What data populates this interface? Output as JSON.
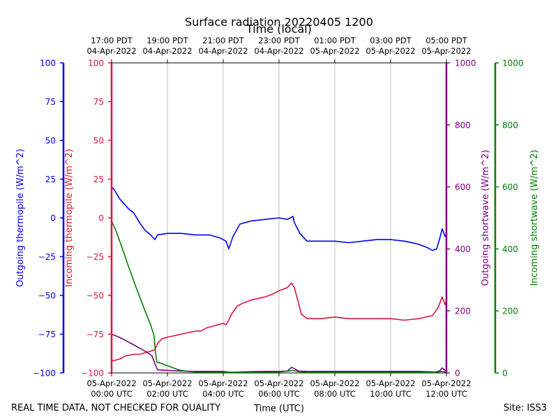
{
  "chart_data": {
    "type": "line",
    "title": "Surface radiation 20220405 1200",
    "x_local_label": "Time (local)",
    "x_utc_label": "Time (UTC)",
    "x_range_hours_utc": [
      0,
      12
    ],
    "x_ticks": [
      {
        "hour": 0,
        "utc": [
          "05-Apr-2022",
          "00:00 UTC"
        ],
        "local": [
          "17:00 PDT",
          "04-Apr-2022"
        ]
      },
      {
        "hour": 2,
        "utc": [
          "05-Apr-2022",
          "02:00 UTC"
        ],
        "local": [
          "19:00 PDT",
          "04-Apr-2022"
        ]
      },
      {
        "hour": 4,
        "utc": [
          "05-Apr-2022",
          "04:00 UTC"
        ],
        "local": [
          "21:00 PDT",
          "04-Apr-2022"
        ]
      },
      {
        "hour": 6,
        "utc": [
          "05-Apr-2022",
          "06:00 UTC"
        ],
        "local": [
          "23:00 PDT",
          "04-Apr-2022"
        ]
      },
      {
        "hour": 8,
        "utc": [
          "05-Apr-2022",
          "08:00 UTC"
        ],
        "local": [
          "01:00 PDT",
          "05-Apr-2022"
        ]
      },
      {
        "hour": 10,
        "utc": [
          "05-Apr-2022",
          "10:00 UTC"
        ],
        "local": [
          "03:00 PDT",
          "05-Apr-2022"
        ]
      },
      {
        "hour": 12,
        "utc": [
          "05-Apr-2022",
          "12:00 UTC"
        ],
        "local": [
          "05:00 PDT",
          "05-Apr-2022"
        ]
      }
    ],
    "grid": "vertical",
    "axes": [
      {
        "id": "out_thermo",
        "label": "Outgoing thermopile (W/m^2)",
        "color": "#0000ee",
        "range": [
          -100,
          100
        ],
        "ticks": [
          -100,
          -75,
          -50,
          -25,
          0,
          25,
          50,
          75,
          100
        ]
      },
      {
        "id": "in_thermo",
        "label": "Incoming thermopile (W/m^2)",
        "color": "#dc143c",
        "range": [
          -100,
          100
        ],
        "ticks": [
          -100,
          -75,
          -50,
          -25,
          0,
          25,
          50,
          75,
          100
        ]
      },
      {
        "id": "out_sw",
        "label": "Outgoing shortwave (W/m^2)",
        "color": "#800080",
        "range": [
          0,
          1000
        ],
        "ticks": [
          0,
          200,
          400,
          600,
          800,
          1000
        ]
      },
      {
        "id": "in_sw",
        "label": "Incoming shortwave (W/m^2)",
        "color": "#008000",
        "range": [
          0,
          1000
        ],
        "ticks": [
          0,
          200,
          400,
          600,
          800,
          1000
        ]
      }
    ],
    "series": [
      {
        "axis": "out_thermo",
        "color": "#0000ee",
        "points": [
          [
            0,
            20
          ],
          [
            0.1,
            18
          ],
          [
            0.2,
            15
          ],
          [
            0.3,
            12
          ],
          [
            0.4,
            10
          ],
          [
            0.5,
            8
          ],
          [
            0.6,
            6
          ],
          [
            0.8,
            3
          ],
          [
            1.0,
            -3
          ],
          [
            1.2,
            -8
          ],
          [
            1.4,
            -11
          ],
          [
            1.55,
            -14
          ],
          [
            1.65,
            -11
          ],
          [
            2.0,
            -10
          ],
          [
            2.5,
            -10
          ],
          [
            3.0,
            -11
          ],
          [
            3.5,
            -11
          ],
          [
            3.9,
            -13
          ],
          [
            4.1,
            -15
          ],
          [
            4.2,
            -20
          ],
          [
            4.35,
            -12
          ],
          [
            4.6,
            -4
          ],
          [
            5.0,
            -2
          ],
          [
            5.5,
            -1
          ],
          [
            6.0,
            0
          ],
          [
            6.3,
            -1
          ],
          [
            6.5,
            1
          ],
          [
            6.55,
            -3
          ],
          [
            6.75,
            -10
          ],
          [
            7.0,
            -15
          ],
          [
            7.5,
            -15
          ],
          [
            8.0,
            -15
          ],
          [
            8.5,
            -16
          ],
          [
            9.0,
            -15
          ],
          [
            9.5,
            -14
          ],
          [
            10.0,
            -14
          ],
          [
            10.5,
            -15
          ],
          [
            11.0,
            -17
          ],
          [
            11.3,
            -19
          ],
          [
            11.5,
            -21
          ],
          [
            11.65,
            -20
          ],
          [
            11.75,
            -14
          ],
          [
            11.85,
            -7
          ],
          [
            11.95,
            -12
          ],
          [
            12.0,
            -10
          ]
        ]
      },
      {
        "axis": "in_thermo",
        "color": "#dc143c",
        "points": [
          [
            0,
            -92
          ],
          [
            0.1,
            -92
          ],
          [
            0.3,
            -91
          ],
          [
            0.5,
            -89
          ],
          [
            0.8,
            -88
          ],
          [
            1.0,
            -88
          ],
          [
            1.2,
            -87
          ],
          [
            1.4,
            -86
          ],
          [
            1.55,
            -85
          ],
          [
            1.65,
            -81
          ],
          [
            1.8,
            -78
          ],
          [
            2.0,
            -77
          ],
          [
            2.5,
            -75
          ],
          [
            3.0,
            -73
          ],
          [
            3.2,
            -73
          ],
          [
            3.4,
            -71
          ],
          [
            3.6,
            -70
          ],
          [
            3.8,
            -69
          ],
          [
            4.0,
            -68
          ],
          [
            4.1,
            -69
          ],
          [
            4.2,
            -66
          ],
          [
            4.3,
            -62
          ],
          [
            4.5,
            -57
          ],
          [
            4.7,
            -55
          ],
          [
            5.0,
            -53
          ],
          [
            5.5,
            -51
          ],
          [
            5.8,
            -49
          ],
          [
            6.0,
            -47
          ],
          [
            6.3,
            -45
          ],
          [
            6.45,
            -42
          ],
          [
            6.55,
            -45
          ],
          [
            6.7,
            -55
          ],
          [
            6.8,
            -62
          ],
          [
            7.0,
            -65
          ],
          [
            7.5,
            -65
          ],
          [
            8.0,
            -64
          ],
          [
            8.5,
            -65
          ],
          [
            9.0,
            -65
          ],
          [
            9.5,
            -65
          ],
          [
            10.0,
            -65
          ],
          [
            10.5,
            -66
          ],
          [
            11.0,
            -65
          ],
          [
            11.5,
            -63
          ],
          [
            11.7,
            -58
          ],
          [
            11.85,
            -51
          ],
          [
            11.95,
            -56
          ],
          [
            12.0,
            -53
          ]
        ]
      },
      {
        "axis": "out_sw",
        "color": "#800080",
        "points": [
          [
            0,
            125
          ],
          [
            0.2,
            118
          ],
          [
            0.5,
            105
          ],
          [
            0.8,
            90
          ],
          [
            1.1,
            75
          ],
          [
            1.3,
            65
          ],
          [
            1.45,
            55
          ],
          [
            1.55,
            30
          ],
          [
            1.65,
            10
          ],
          [
            2.0,
            8
          ],
          [
            2.5,
            6
          ],
          [
            3.0,
            5
          ],
          [
            3.5,
            5
          ],
          [
            4.0,
            5
          ],
          [
            4.2,
            2
          ],
          [
            4.35,
            2
          ],
          [
            4.6,
            3
          ],
          [
            5.0,
            4
          ],
          [
            5.5,
            5
          ],
          [
            6.0,
            5
          ],
          [
            6.3,
            6
          ],
          [
            6.45,
            18
          ],
          [
            6.55,
            14
          ],
          [
            6.7,
            6
          ],
          [
            7.0,
            5
          ],
          [
            8.0,
            5
          ],
          [
            9.0,
            5
          ],
          [
            10.0,
            5
          ],
          [
            11.0,
            5
          ],
          [
            11.6,
            3
          ],
          [
            11.75,
            6
          ],
          [
            11.85,
            16
          ],
          [
            11.95,
            8
          ],
          [
            12.0,
            10
          ]
        ]
      },
      {
        "axis": "in_sw",
        "color": "#008000",
        "points": [
          [
            0,
            490
          ],
          [
            0.15,
            460
          ],
          [
            0.35,
            410
          ],
          [
            0.6,
            345
          ],
          [
            0.9,
            270
          ],
          [
            1.2,
            200
          ],
          [
            1.4,
            155
          ],
          [
            1.52,
            120
          ],
          [
            1.57,
            70
          ],
          [
            1.62,
            35
          ],
          [
            1.8,
            30
          ],
          [
            2.1,
            20
          ],
          [
            2.4,
            10
          ],
          [
            2.7,
            5
          ],
          [
            3.0,
            3
          ],
          [
            4.0,
            2
          ],
          [
            5.0,
            2
          ],
          [
            6.0,
            3
          ],
          [
            6.5,
            8
          ],
          [
            6.7,
            4
          ],
          [
            7.0,
            2
          ],
          [
            8.0,
            2
          ],
          [
            9.0,
            2
          ],
          [
            10.0,
            2
          ],
          [
            11.0,
            2
          ],
          [
            11.6,
            1
          ],
          [
            11.8,
            5
          ],
          [
            12.0,
            3
          ]
        ]
      }
    ]
  },
  "footer": {
    "quality_note": "REAL TIME DATA, NOT CHECKED FOR QUALITY",
    "site": "Site: ISS3"
  }
}
